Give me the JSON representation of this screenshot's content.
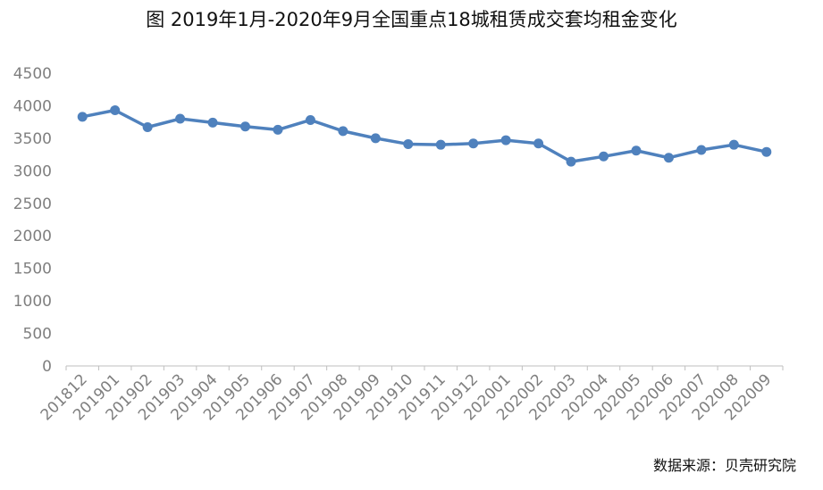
{
  "chart_data": {
    "type": "line",
    "title": "图 2019年1月-2020年9月全国重点18城租赁成交套均租金变化",
    "xlabel": "",
    "ylabel": "",
    "categories": [
      "201812",
      "201901",
      "201902",
      "201903",
      "201904",
      "201905",
      "201906",
      "201907",
      "201908",
      "201909",
      "201910",
      "201911",
      "201912",
      "202001",
      "202002",
      "202003",
      "202004",
      "202005",
      "202006",
      "202007",
      "202008",
      "202009"
    ],
    "values": [
      3830,
      3930,
      3670,
      3800,
      3740,
      3680,
      3630,
      3780,
      3610,
      3500,
      3410,
      3400,
      3420,
      3470,
      3420,
      3140,
      3220,
      3310,
      3200,
      3320,
      3400,
      3290
    ],
    "ylim": [
      0,
      4500
    ],
    "yticks": [
      0,
      500,
      1000,
      1500,
      2000,
      2500,
      3000,
      3500,
      4000,
      4500
    ],
    "grid": false,
    "legend": "none",
    "color": "#4f81bd"
  },
  "source": "数据来源：贝壳研究院"
}
